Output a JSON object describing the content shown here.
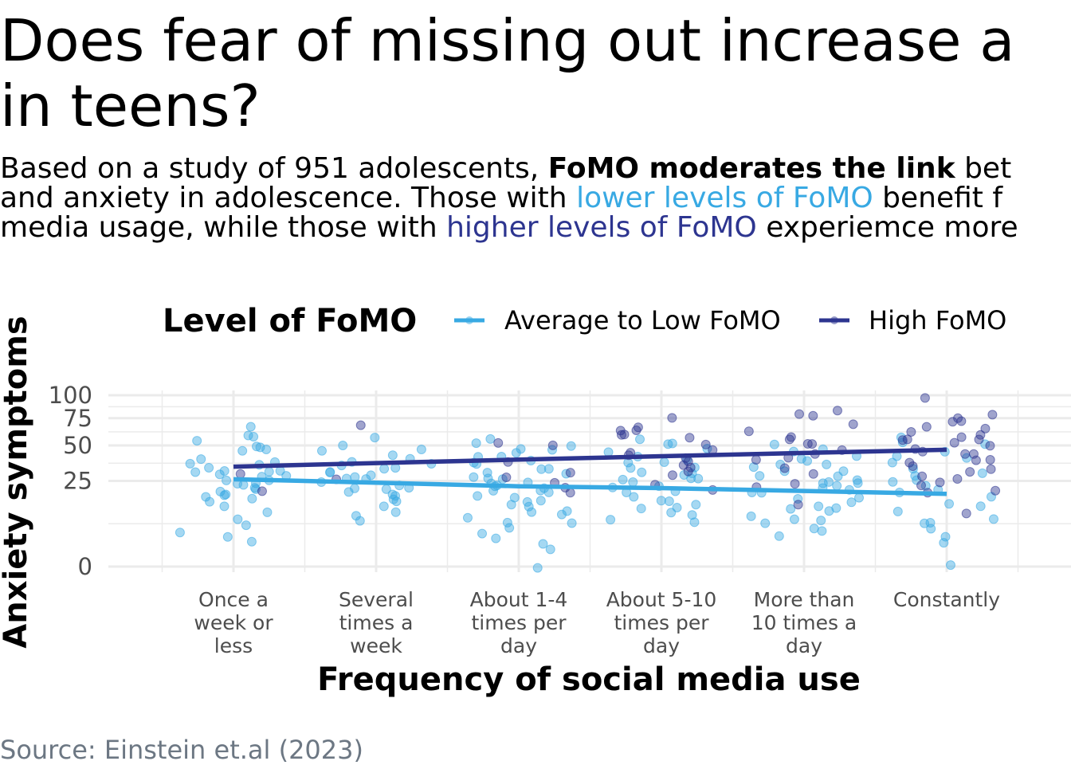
{
  "title_lines": [
    "Does fear of missing out increase a",
    "in teens?"
  ],
  "subtitle": {
    "l1_a": "Based on a study of 951 adolescents, ",
    "l1_b": "FoMO moderates the link",
    "l1_c": " bet",
    "l2_a": "and anxiety in adolescence. Those with ",
    "l2_b": "lower levels of FoMO",
    "l2_c": " benefit f",
    "l3_a": "media usage, while those with ",
    "l3_b": "higher levels of FoMO",
    "l3_c": " experiemce more"
  },
  "source": "Source: Einstein et.al (2023)",
  "colors": {
    "low": "#38a9e3",
    "high": "#2d3590",
    "grid": "#ebebeb",
    "axis_text": "#4d4d4d"
  },
  "chart_data": {
    "type": "scatter",
    "xlabel": "Frequency of social media use",
    "ylabel": "Anxiety symptoms",
    "y_scale": "sqrt",
    "ylim": [
      0,
      100
    ],
    "y_ticks": [
      0,
      25,
      50,
      75,
      100
    ],
    "categories": [
      [
        "Once a",
        "week or",
        "less"
      ],
      [
        "Several",
        "times a",
        "week"
      ],
      [
        "About 1-4",
        "times per",
        "day"
      ],
      [
        "About 5-10",
        "times per",
        "day"
      ],
      [
        "More than",
        "10 times a",
        "day"
      ],
      [
        "Constantly"
      ]
    ],
    "legend": {
      "title": "Level of FoMO",
      "position": "top"
    },
    "series": [
      {
        "name": "Average to Low FoMO",
        "color": "#38a9e3",
        "trend": [
          26,
          24,
          22,
          21,
          19.5,
          18
        ],
        "points": [
          [
            1,
            66
          ],
          [
            1,
            60
          ],
          [
            1,
            58
          ],
          [
            1,
            55
          ],
          [
            1,
            50
          ],
          [
            1,
            48
          ],
          [
            1,
            46
          ],
          [
            1,
            45
          ],
          [
            1,
            40
          ],
          [
            1,
            38
          ],
          [
            1,
            36
          ],
          [
            1,
            35
          ],
          [
            1,
            33
          ],
          [
            1,
            32
          ],
          [
            1,
            31
          ],
          [
            1,
            30
          ],
          [
            1,
            30
          ],
          [
            1,
            29
          ],
          [
            1,
            28
          ],
          [
            1,
            27
          ],
          [
            1,
            26
          ],
          [
            1,
            25
          ],
          [
            1,
            24
          ],
          [
            1,
            23
          ],
          [
            1,
            22
          ],
          [
            1,
            21
          ],
          [
            1,
            20
          ],
          [
            1,
            19
          ],
          [
            1,
            18
          ],
          [
            1,
            17
          ],
          [
            1,
            16
          ],
          [
            1,
            15
          ],
          [
            1,
            14
          ],
          [
            1,
            12
          ],
          [
            1,
            10
          ],
          [
            1,
            8
          ],
          [
            1,
            6
          ],
          [
            1,
            4
          ],
          [
            1,
            3
          ],
          [
            1,
            2
          ],
          [
            2,
            58
          ],
          [
            2,
            50
          ],
          [
            2,
            47
          ],
          [
            2,
            46
          ],
          [
            2,
            42
          ],
          [
            2,
            40
          ],
          [
            2,
            38
          ],
          [
            2,
            36
          ],
          [
            2,
            35
          ],
          [
            2,
            34
          ],
          [
            2,
            33
          ],
          [
            2,
            31
          ],
          [
            2,
            30
          ],
          [
            2,
            29
          ],
          [
            2,
            28
          ],
          [
            2,
            27
          ],
          [
            2,
            26
          ],
          [
            2,
            24
          ],
          [
            2,
            23
          ],
          [
            2,
            22
          ],
          [
            2,
            21
          ],
          [
            2,
            20
          ],
          [
            2,
            19
          ],
          [
            2,
            18
          ],
          [
            2,
            17
          ],
          [
            2,
            16
          ],
          [
            2,
            14
          ],
          [
            2,
            12
          ],
          [
            2,
            10
          ],
          [
            2,
            9
          ],
          [
            2,
            7
          ],
          [
            3,
            55
          ],
          [
            3,
            52
          ],
          [
            3,
            50
          ],
          [
            3,
            48
          ],
          [
            3,
            46
          ],
          [
            3,
            44
          ],
          [
            3,
            42
          ],
          [
            3,
            40
          ],
          [
            3,
            38
          ],
          [
            3,
            36
          ],
          [
            3,
            35
          ],
          [
            3,
            33
          ],
          [
            3,
            32
          ],
          [
            3,
            30
          ],
          [
            3,
            29
          ],
          [
            3,
            28
          ],
          [
            3,
            27
          ],
          [
            3,
            26
          ],
          [
            3,
            25
          ],
          [
            3,
            24
          ],
          [
            3,
            23
          ],
          [
            3,
            22
          ],
          [
            3,
            21
          ],
          [
            3,
            20
          ],
          [
            3,
            19
          ],
          [
            3,
            18
          ],
          [
            3,
            17
          ],
          [
            3,
            16
          ],
          [
            3,
            15
          ],
          [
            3,
            14
          ],
          [
            3,
            13
          ],
          [
            3,
            12
          ],
          [
            3,
            11
          ],
          [
            3,
            10
          ],
          [
            3,
            9
          ],
          [
            3,
            8
          ],
          [
            3,
            7
          ],
          [
            3,
            6
          ],
          [
            3,
            5
          ],
          [
            3,
            4
          ],
          [
            3,
            3
          ],
          [
            3,
            2
          ],
          [
            3,
            1
          ],
          [
            3,
            0
          ],
          [
            4,
            56
          ],
          [
            4,
            52
          ],
          [
            4,
            50
          ],
          [
            4,
            48
          ],
          [
            4,
            45
          ],
          [
            4,
            42
          ],
          [
            4,
            40
          ],
          [
            4,
            38
          ],
          [
            4,
            36
          ],
          [
            4,
            34
          ],
          [
            4,
            33
          ],
          [
            4,
            31
          ],
          [
            4,
            30
          ],
          [
            4,
            28
          ],
          [
            4,
            27
          ],
          [
            4,
            26
          ],
          [
            4,
            25
          ],
          [
            4,
            24
          ],
          [
            4,
            22
          ],
          [
            4,
            21
          ],
          [
            4,
            20
          ],
          [
            4,
            18
          ],
          [
            4,
            17
          ],
          [
            4,
            15
          ],
          [
            4,
            14
          ],
          [
            4,
            13
          ],
          [
            4,
            12
          ],
          [
            4,
            11
          ],
          [
            4,
            10
          ],
          [
            4,
            9
          ],
          [
            4,
            8
          ],
          [
            4,
            7
          ],
          [
            5,
            50
          ],
          [
            5,
            48
          ],
          [
            5,
            45
          ],
          [
            5,
            42
          ],
          [
            5,
            40
          ],
          [
            5,
            38
          ],
          [
            5,
            36
          ],
          [
            5,
            35
          ],
          [
            5,
            33
          ],
          [
            5,
            31
          ],
          [
            5,
            30
          ],
          [
            5,
            29
          ],
          [
            5,
            28
          ],
          [
            5,
            26
          ],
          [
            5,
            25
          ],
          [
            5,
            24
          ],
          [
            5,
            23
          ],
          [
            5,
            22
          ],
          [
            5,
            21
          ],
          [
            5,
            20
          ],
          [
            5,
            19
          ],
          [
            5,
            18
          ],
          [
            5,
            16
          ],
          [
            5,
            15
          ],
          [
            5,
            14
          ],
          [
            5,
            13
          ],
          [
            5,
            12
          ],
          [
            5,
            11
          ],
          [
            5,
            10
          ],
          [
            5,
            9
          ],
          [
            5,
            8
          ],
          [
            5,
            7
          ],
          [
            5,
            6
          ],
          [
            5,
            5
          ],
          [
            5,
            4
          ],
          [
            5,
            3
          ],
          [
            6,
            56
          ],
          [
            6,
            52
          ],
          [
            6,
            50
          ],
          [
            6,
            46
          ],
          [
            6,
            42
          ],
          [
            6,
            40
          ],
          [
            6,
            36
          ],
          [
            6,
            33
          ],
          [
            6,
            30
          ],
          [
            6,
            28
          ],
          [
            6,
            26
          ],
          [
            6,
            24
          ],
          [
            6,
            22
          ],
          [
            6,
            20
          ],
          [
            6,
            18
          ],
          [
            6,
            16
          ],
          [
            6,
            14
          ],
          [
            6,
            12
          ],
          [
            6,
            10
          ],
          [
            6,
            8
          ],
          [
            6,
            7
          ],
          [
            6,
            6
          ],
          [
            6,
            5
          ],
          [
            6,
            3
          ],
          [
            6,
            2
          ],
          [
            6,
            0
          ]
        ]
      },
      {
        "name": "High FoMO",
        "color": "#2d3590",
        "trend": [
          34,
          36.5,
          39,
          41.5,
          44,
          46.5
        ],
        "points": [
          [
            1,
            30
          ],
          [
            1,
            20
          ],
          [
            2,
            68
          ],
          [
            2,
            26
          ],
          [
            3,
            52
          ],
          [
            3,
            50
          ],
          [
            3,
            38
          ],
          [
            3,
            30
          ],
          [
            3,
            27
          ],
          [
            3,
            24
          ],
          [
            3,
            22
          ],
          [
            3,
            18
          ],
          [
            4,
            76
          ],
          [
            4,
            66
          ],
          [
            4,
            64
          ],
          [
            4,
            62
          ],
          [
            4,
            60
          ],
          [
            4,
            58
          ],
          [
            4,
            56
          ],
          [
            4,
            50
          ],
          [
            4,
            46
          ],
          [
            4,
            44
          ],
          [
            4,
            42
          ],
          [
            4,
            40
          ],
          [
            4,
            38
          ],
          [
            4,
            36
          ],
          [
            4,
            33
          ],
          [
            4,
            30
          ],
          [
            4,
            28
          ],
          [
            4,
            22
          ],
          [
            4,
            20
          ],
          [
            5,
            84
          ],
          [
            5,
            80
          ],
          [
            5,
            76
          ],
          [
            5,
            68
          ],
          [
            5,
            62
          ],
          [
            5,
            56
          ],
          [
            5,
            55
          ],
          [
            5,
            52
          ],
          [
            5,
            50
          ],
          [
            5,
            45
          ],
          [
            5,
            42
          ],
          [
            5,
            40
          ],
          [
            5,
            38
          ],
          [
            5,
            34
          ],
          [
            5,
            30
          ],
          [
            5,
            24
          ],
          [
            5,
            22
          ],
          [
            5,
            13
          ],
          [
            6,
            98
          ],
          [
            6,
            78
          ],
          [
            6,
            74
          ],
          [
            6,
            72
          ],
          [
            6,
            70
          ],
          [
            6,
            66
          ],
          [
            6,
            64
          ],
          [
            6,
            62
          ],
          [
            6,
            60
          ],
          [
            6,
            58
          ],
          [
            6,
            56
          ],
          [
            6,
            55
          ],
          [
            6,
            54
          ],
          [
            6,
            52
          ],
          [
            6,
            50
          ],
          [
            6,
            48
          ],
          [
            6,
            46
          ],
          [
            6,
            44
          ],
          [
            6,
            42
          ],
          [
            6,
            40
          ],
          [
            6,
            38
          ],
          [
            6,
            36
          ],
          [
            6,
            34
          ],
          [
            6,
            32
          ],
          [
            6,
            30
          ],
          [
            6,
            28
          ],
          [
            6,
            26
          ],
          [
            6,
            24
          ],
          [
            6,
            22
          ],
          [
            6,
            20
          ],
          [
            6,
            18
          ],
          [
            6,
            10
          ]
        ]
      }
    ]
  }
}
